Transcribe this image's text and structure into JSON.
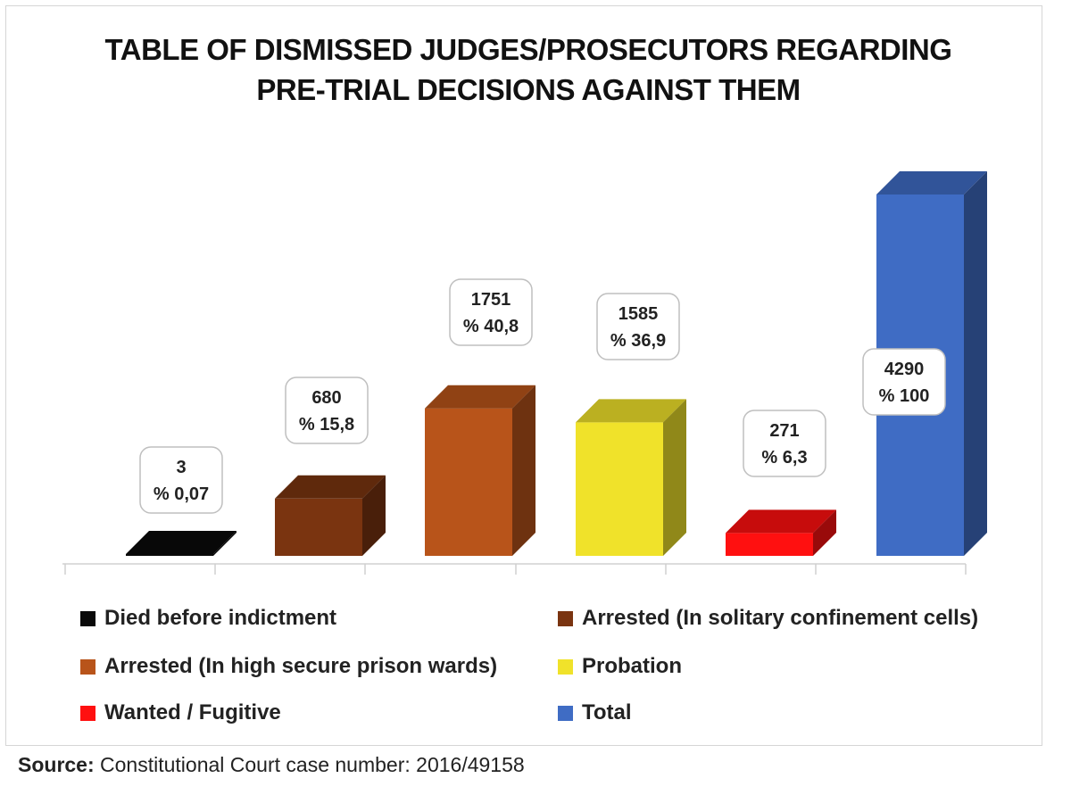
{
  "chart_data": {
    "type": "bar",
    "title": "TABLE OF DISMISSED JUDGES/PROSECUTORS REGARDING PRE-TRIAL DECISIONS AGAINST THEM",
    "title_lines": [
      "TABLE OF DISMISSED JUDGES/PROSECUTORS REGARDING",
      "PRE-TRIAL DECISIONS AGAINST THEM"
    ],
    "categories": [
      "Died before indictment",
      "Arrested (In solitary confinement cells)",
      "Arrested (In high secure prison wards)",
      "Probation",
      "Wanted / Fugitive",
      "Total"
    ],
    "values": [
      3,
      680,
      1751,
      1585,
      271,
      4290
    ],
    "value_labels": [
      "3",
      "680",
      "1751",
      "1585",
      "271",
      "4290"
    ],
    "percent_labels": [
      "% 0,07",
      "% 15,8",
      "% 40,8",
      "% 36,9",
      "% 6,3",
      "% 100"
    ],
    "colors": [
      "#0a0a0a",
      "#7a3410",
      "#b8541a",
      "#f0e22a",
      "#ff1010",
      "#3f6cc4"
    ],
    "ylim": [
      0,
      4290
    ],
    "style": "3d-column",
    "legend": "bottom",
    "grid": false
  },
  "source": {
    "label": "Source:",
    "text": "Constitutional Court case number: 2016/49158"
  }
}
